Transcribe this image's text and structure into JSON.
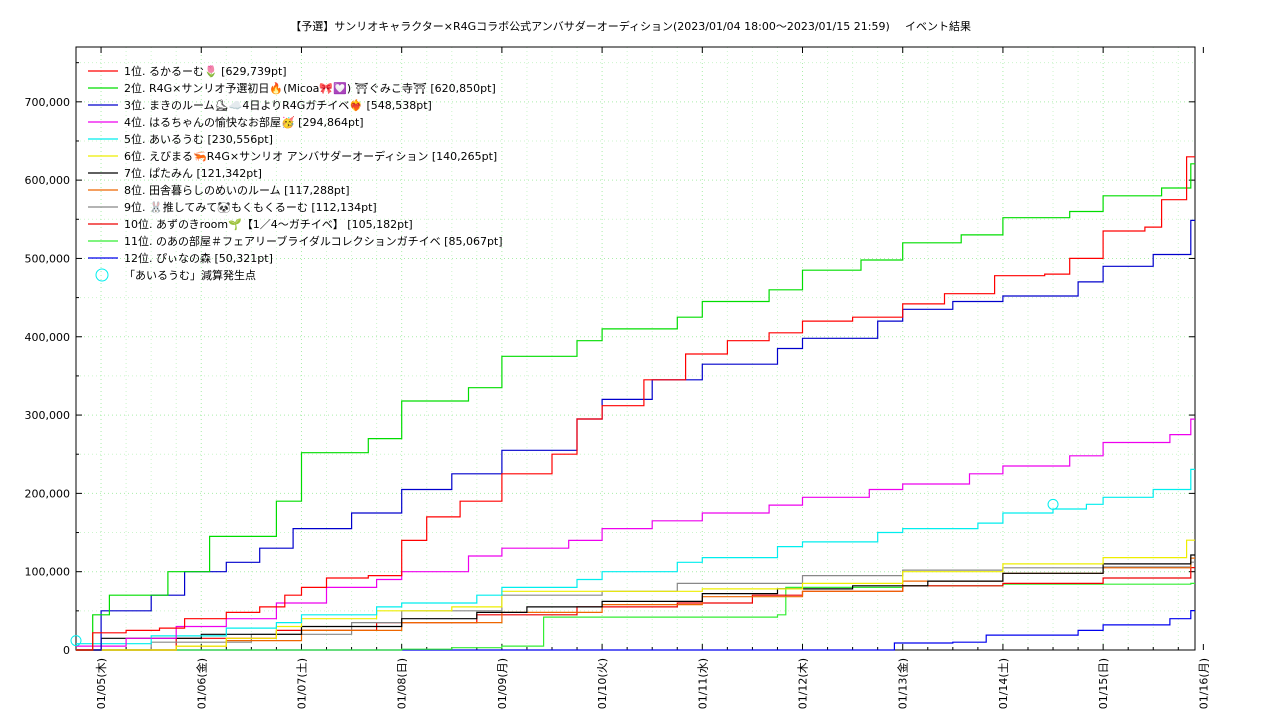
{
  "chart_data": {
    "type": "line",
    "title": "【予選】サンリオキャラクター×R4Gコラボ公式アンバサダーオーディション(2023/01/04 18:00〜2023/01/15 21:59)",
    "subtitle": "イベント結果",
    "xlabel": "",
    "ylabel": "",
    "x_range": [
      "2023-01-04 18:00",
      "2023-01-15 22:00"
    ],
    "ylim": [
      0,
      770000
    ],
    "y_ticks": [
      0,
      100000,
      200000,
      300000,
      400000,
      500000,
      600000,
      700000
    ],
    "y_tick_labels": [
      "0",
      "100,000",
      "200,000",
      "300,000",
      "400,000",
      "500,000",
      "600,000",
      "700,000"
    ],
    "x_ticks": [
      "2023-01-05 00:00",
      "2023-01-06 00:00",
      "2023-01-07 00:00",
      "2023-01-08 00:00",
      "2023-01-09 00:00",
      "2023-01-10 00:00",
      "2023-01-11 00:00",
      "2023-01-12 00:00",
      "2023-01-13 00:00",
      "2023-01-14 00:00",
      "2023-01-15 00:00",
      "2023-01-16 00:00"
    ],
    "x_tick_labels": [
      "01/05(木)",
      "01/06(金)",
      "01/07(土)",
      "01/08(日)",
      "01/09(月)",
      "01/10(火)",
      "01/11(水)",
      "01/12(木)",
      "01/13(金)",
      "01/14(土)",
      "01/15(日)",
      "01/16(月)"
    ],
    "grid": true,
    "legend_position": "top-left",
    "series": [
      {
        "name": "1位. るかるーむ🌷 [629,739pt]",
        "color": "#ff0000",
        "points": [
          [
            "2023-01-04 18:00",
            0
          ],
          [
            "2023-01-04 22:00",
            22000
          ],
          [
            "2023-01-05 06:00",
            25000
          ],
          [
            "2023-01-05 14:00",
            28000
          ],
          [
            "2023-01-05 20:00",
            40000
          ],
          [
            "2023-01-06 06:00",
            48000
          ],
          [
            "2023-01-06 14:00",
            55000
          ],
          [
            "2023-01-06 20:00",
            70000
          ],
          [
            "2023-01-07 00:00",
            80000
          ],
          [
            "2023-01-07 06:00",
            92000
          ],
          [
            "2023-01-07 16:00",
            95000
          ],
          [
            "2023-01-08 00:00",
            140000
          ],
          [
            "2023-01-08 06:00",
            170000
          ],
          [
            "2023-01-08 14:00",
            190000
          ],
          [
            "2023-01-09 00:00",
            225000
          ],
          [
            "2023-01-09 12:00",
            250000
          ],
          [
            "2023-01-09 18:00",
            295000
          ],
          [
            "2023-01-10 00:00",
            312000
          ],
          [
            "2023-01-10 10:00",
            345000
          ],
          [
            "2023-01-10 20:00",
            378000
          ],
          [
            "2023-01-11 06:00",
            395000
          ],
          [
            "2023-01-11 16:00",
            405000
          ],
          [
            "2023-01-12 00:00",
            420000
          ],
          [
            "2023-01-12 12:00",
            425000
          ],
          [
            "2023-01-13 00:00",
            442000
          ],
          [
            "2023-01-13 10:00",
            455000
          ],
          [
            "2023-01-13 22:00",
            478000
          ],
          [
            "2023-01-14 10:00",
            480000
          ],
          [
            "2023-01-14 16:00",
            500000
          ],
          [
            "2023-01-15 00:00",
            535000
          ],
          [
            "2023-01-15 10:00",
            540000
          ],
          [
            "2023-01-15 14:00",
            575000
          ],
          [
            "2023-01-15 20:00",
            629739
          ]
        ]
      },
      {
        "name": "2位. R4G×サンリオ予選初日🔥(Micoa🎀💟) ⛩ぐみこ寺⛩ [620,850pt]",
        "color": "#00dd00",
        "points": [
          [
            "2023-01-04 18:00",
            0
          ],
          [
            "2023-01-04 22:00",
            45000
          ],
          [
            "2023-01-05 02:00",
            70000
          ],
          [
            "2023-01-05 16:00",
            100000
          ],
          [
            "2023-01-06 02:00",
            145000
          ],
          [
            "2023-01-06 18:00",
            190000
          ],
          [
            "2023-01-07 00:00",
            252000
          ],
          [
            "2023-01-07 16:00",
            270000
          ],
          [
            "2023-01-08 00:00",
            318000
          ],
          [
            "2023-01-08 16:00",
            335000
          ],
          [
            "2023-01-09 00:00",
            375000
          ],
          [
            "2023-01-09 18:00",
            395000
          ],
          [
            "2023-01-10 00:00",
            410000
          ],
          [
            "2023-01-10 18:00",
            425000
          ],
          [
            "2023-01-11 00:00",
            445000
          ],
          [
            "2023-01-11 16:00",
            460000
          ],
          [
            "2023-01-12 00:00",
            485000
          ],
          [
            "2023-01-12 14:00",
            498000
          ],
          [
            "2023-01-13 00:00",
            520000
          ],
          [
            "2023-01-13 14:00",
            530000
          ],
          [
            "2023-01-14 00:00",
            552000
          ],
          [
            "2023-01-14 16:00",
            560000
          ],
          [
            "2023-01-15 00:00",
            580000
          ],
          [
            "2023-01-15 14:00",
            590000
          ],
          [
            "2023-01-15 21:00",
            620850
          ]
        ]
      },
      {
        "name": "3位. まきのルーム⛸☁️4日よりR4Gガチイベ❤️‍🔥 [548,538pt]",
        "color": "#0000cc",
        "points": [
          [
            "2023-01-04 18:00",
            0
          ],
          [
            "2023-01-05 00:00",
            50000
          ],
          [
            "2023-01-05 12:00",
            70000
          ],
          [
            "2023-01-05 20:00",
            100000
          ],
          [
            "2023-01-06 06:00",
            112000
          ],
          [
            "2023-01-06 14:00",
            130000
          ],
          [
            "2023-01-06 22:00",
            155000
          ],
          [
            "2023-01-07 12:00",
            175000
          ],
          [
            "2023-01-08 00:00",
            205000
          ],
          [
            "2023-01-08 12:00",
            225000
          ],
          [
            "2023-01-09 00:00",
            255000
          ],
          [
            "2023-01-09 18:00",
            295000
          ],
          [
            "2023-01-10 00:00",
            320000
          ],
          [
            "2023-01-10 12:00",
            345000
          ],
          [
            "2023-01-11 00:00",
            365000
          ],
          [
            "2023-01-11 18:00",
            385000
          ],
          [
            "2023-01-12 00:00",
            398000
          ],
          [
            "2023-01-12 18:00",
            420000
          ],
          [
            "2023-01-13 00:00",
            435000
          ],
          [
            "2023-01-13 12:00",
            445000
          ],
          [
            "2023-01-14 00:00",
            452000
          ],
          [
            "2023-01-14 18:00",
            470000
          ],
          [
            "2023-01-15 00:00",
            490000
          ],
          [
            "2023-01-15 12:00",
            505000
          ],
          [
            "2023-01-15 21:00",
            548538
          ]
        ]
      },
      {
        "name": "4位. はるちゃんの愉快なお部屋🥳 [294,864pt]",
        "color": "#ee00ee",
        "points": [
          [
            "2023-01-04 18:00",
            5000
          ],
          [
            "2023-01-05 06:00",
            15000
          ],
          [
            "2023-01-05 18:00",
            30000
          ],
          [
            "2023-01-06 06:00",
            40000
          ],
          [
            "2023-01-06 18:00",
            60000
          ],
          [
            "2023-01-07 06:00",
            80000
          ],
          [
            "2023-01-07 18:00",
            90000
          ],
          [
            "2023-01-08 00:00",
            100000
          ],
          [
            "2023-01-08 16:00",
            120000
          ],
          [
            "2023-01-09 00:00",
            130000
          ],
          [
            "2023-01-09 16:00",
            140000
          ],
          [
            "2023-01-10 00:00",
            155000
          ],
          [
            "2023-01-10 12:00",
            165000
          ],
          [
            "2023-01-11 00:00",
            175000
          ],
          [
            "2023-01-11 16:00",
            185000
          ],
          [
            "2023-01-12 00:00",
            195000
          ],
          [
            "2023-01-12 16:00",
            205000
          ],
          [
            "2023-01-13 00:00",
            212000
          ],
          [
            "2023-01-13 16:00",
            225000
          ],
          [
            "2023-01-14 00:00",
            235000
          ],
          [
            "2023-01-14 16:00",
            248000
          ],
          [
            "2023-01-15 00:00",
            265000
          ],
          [
            "2023-01-15 16:00",
            275000
          ],
          [
            "2023-01-15 21:00",
            294864
          ]
        ]
      },
      {
        "name": "5位. あいるうむ [230,556pt]",
        "color": "#00eeee",
        "points": [
          [
            "2023-01-04 18:00",
            8000
          ],
          [
            "2023-01-05 12:00",
            18000
          ],
          [
            "2023-01-06 06:00",
            28000
          ],
          [
            "2023-01-06 18:00",
            35000
          ],
          [
            "2023-01-07 00:00",
            45000
          ],
          [
            "2023-01-07 18:00",
            55000
          ],
          [
            "2023-01-08 00:00",
            60000
          ],
          [
            "2023-01-08 18:00",
            70000
          ],
          [
            "2023-01-09 00:00",
            80000
          ],
          [
            "2023-01-09 18:00",
            90000
          ],
          [
            "2023-01-10 00:00",
            100000
          ],
          [
            "2023-01-10 18:00",
            112000
          ],
          [
            "2023-01-11 00:00",
            118000
          ],
          [
            "2023-01-11 18:00",
            132000
          ],
          [
            "2023-01-12 00:00",
            138000
          ],
          [
            "2023-01-12 18:00",
            150000
          ],
          [
            "2023-01-13 00:00",
            155000
          ],
          [
            "2023-01-13 18:00",
            162000
          ],
          [
            "2023-01-14 00:00",
            175000
          ],
          [
            "2023-01-14 12:00",
            180000
          ],
          [
            "2023-01-14 20:00",
            186000
          ],
          [
            "2023-01-15 00:00",
            195000
          ],
          [
            "2023-01-15 12:00",
            205000
          ],
          [
            "2023-01-15 21:00",
            230556
          ]
        ]
      },
      {
        "name": "6位. えびまる🦐R4G×サンリオ アンバサダーオーディション [140,265pt]",
        "color": "#eeee00",
        "points": [
          [
            "2023-01-04 18:00",
            0
          ],
          [
            "2023-01-05 18:00",
            5000
          ],
          [
            "2023-01-06 06:00",
            15000
          ],
          [
            "2023-01-06 18:00",
            30000
          ],
          [
            "2023-01-07 00:00",
            40000
          ],
          [
            "2023-01-07 18:00",
            50000
          ],
          [
            "2023-01-08 12:00",
            55000
          ],
          [
            "2023-01-09 00:00",
            75000
          ],
          [
            "2023-01-10 00:00",
            75000
          ],
          [
            "2023-01-11 00:00",
            78000
          ],
          [
            "2023-01-12 00:00",
            85000
          ],
          [
            "2023-01-13 00:00",
            100000
          ],
          [
            "2023-01-14 00:00",
            110000
          ],
          [
            "2023-01-15 00:00",
            118000
          ],
          [
            "2023-01-15 20:00",
            140265
          ]
        ]
      },
      {
        "name": "7位. ぱたみん [121,342pt]",
        "color": "#000000",
        "points": [
          [
            "2023-01-04 18:00",
            0
          ],
          [
            "2023-01-05 00:00",
            15000
          ],
          [
            "2023-01-06 00:00",
            20000
          ],
          [
            "2023-01-07 00:00",
            30000
          ],
          [
            "2023-01-08 00:00",
            40000
          ],
          [
            "2023-01-08 18:00",
            48000
          ],
          [
            "2023-01-09 06:00",
            55000
          ],
          [
            "2023-01-10 00:00",
            62000
          ],
          [
            "2023-01-11 00:00",
            72000
          ],
          [
            "2023-01-11 18:00",
            78000
          ],
          [
            "2023-01-12 12:00",
            82000
          ],
          [
            "2023-01-13 06:00",
            88000
          ],
          [
            "2023-01-14 00:00",
            98000
          ],
          [
            "2023-01-15 00:00",
            110000
          ],
          [
            "2023-01-15 21:00",
            121342
          ]
        ]
      },
      {
        "name": "8位. 田舎暮らしのめいのルーム [117,288pt]",
        "color": "#ee6600",
        "points": [
          [
            "2023-01-04 18:00",
            0
          ],
          [
            "2023-01-05 18:00",
            5000
          ],
          [
            "2023-01-06 06:00",
            12000
          ],
          [
            "2023-01-07 00:00",
            25000
          ],
          [
            "2023-01-08 00:00",
            35000
          ],
          [
            "2023-01-09 00:00",
            48000
          ],
          [
            "2023-01-10 00:00",
            58000
          ],
          [
            "2023-01-11 00:00",
            68000
          ],
          [
            "2023-01-12 00:00",
            75000
          ],
          [
            "2023-01-13 00:00",
            88000
          ],
          [
            "2023-01-14 00:00",
            98000
          ],
          [
            "2023-01-15 00:00",
            105000
          ],
          [
            "2023-01-15 21:00",
            117288
          ]
        ]
      },
      {
        "name": "9位. 🐰推してみて🐼もくもくるーむ [112,134pt]",
        "color": "#888888",
        "points": [
          [
            "2023-01-04 18:00",
            0
          ],
          [
            "2023-01-05 12:00",
            10000
          ],
          [
            "2023-01-06 12:00",
            20000
          ],
          [
            "2023-01-07 12:00",
            35000
          ],
          [
            "2023-01-08 00:00",
            50000
          ],
          [
            "2023-01-09 00:00",
            70000
          ],
          [
            "2023-01-10 00:00",
            75000
          ],
          [
            "2023-01-10 18:00",
            85000
          ],
          [
            "2023-01-11 18:00",
            85000
          ],
          [
            "2023-01-12 00:00",
            95000
          ],
          [
            "2023-01-13 00:00",
            102000
          ],
          [
            "2023-01-14 00:00",
            105000
          ],
          [
            "2023-01-15 00:00",
            106000
          ],
          [
            "2023-01-15 21:00",
            112134
          ]
        ]
      },
      {
        "name": "10位. あずのきroom🌱【1／4〜ガチイベ】 [105,182pt]",
        "color": "#ee0000",
        "points": [
          [
            "2023-01-04 18:00",
            0
          ],
          [
            "2023-01-05 18:00",
            15000
          ],
          [
            "2023-01-06 18:00",
            25000
          ],
          [
            "2023-01-07 18:00",
            35000
          ],
          [
            "2023-01-08 18:00",
            45000
          ],
          [
            "2023-01-09 18:00",
            55000
          ],
          [
            "2023-01-10 18:00",
            60000
          ],
          [
            "2023-01-11 12:00",
            70000
          ],
          [
            "2023-01-12 00:00",
            75000
          ],
          [
            "2023-01-13 00:00",
            82000
          ],
          [
            "2023-01-14 00:00",
            85000
          ],
          [
            "2023-01-15 00:00",
            92000
          ],
          [
            "2023-01-15 21:00",
            105182
          ]
        ]
      },
      {
        "name": "11位. のあの部屋＃フェアリーブライダルコレクションガチイベ [85,067pt]",
        "color": "#33ee33",
        "points": [
          [
            "2023-01-04 18:00",
            0
          ],
          [
            "2023-01-07 12:00",
            0
          ],
          [
            "2023-01-08 00:00",
            1000
          ],
          [
            "2023-01-08 12:00",
            3000
          ],
          [
            "2023-01-09 00:00",
            5000
          ],
          [
            "2023-01-09 10:00",
            42000
          ],
          [
            "2023-01-11 18:00",
            45000
          ],
          [
            "2023-01-11 20:00",
            80000
          ],
          [
            "2023-01-13 00:00",
            82000
          ],
          [
            "2023-01-14 00:00",
            84000
          ],
          [
            "2023-01-15 21:00",
            85067
          ]
        ]
      },
      {
        "name": "12位. ぴぃなの森 [50,321pt]",
        "color": "#0000ee",
        "points": [
          [
            "2023-01-04 18:00",
            0
          ],
          [
            "2023-01-12 20:00",
            0
          ],
          [
            "2023-01-12 22:00",
            9000
          ],
          [
            "2023-01-13 12:00",
            10000
          ],
          [
            "2023-01-13 20:00",
            19000
          ],
          [
            "2023-01-14 18:00",
            25000
          ],
          [
            "2023-01-15 00:00",
            32000
          ],
          [
            "2023-01-15 16:00",
            40000
          ],
          [
            "2023-01-15 21:00",
            50321
          ]
        ]
      }
    ],
    "decrease_points": {
      "name": "「あいるうむ」減算発生点",
      "color": "#00eeee",
      "points": [
        [
          "2023-01-04 18:00",
          12000
        ],
        [
          "2023-01-14 12:00",
          186000
        ]
      ]
    }
  }
}
